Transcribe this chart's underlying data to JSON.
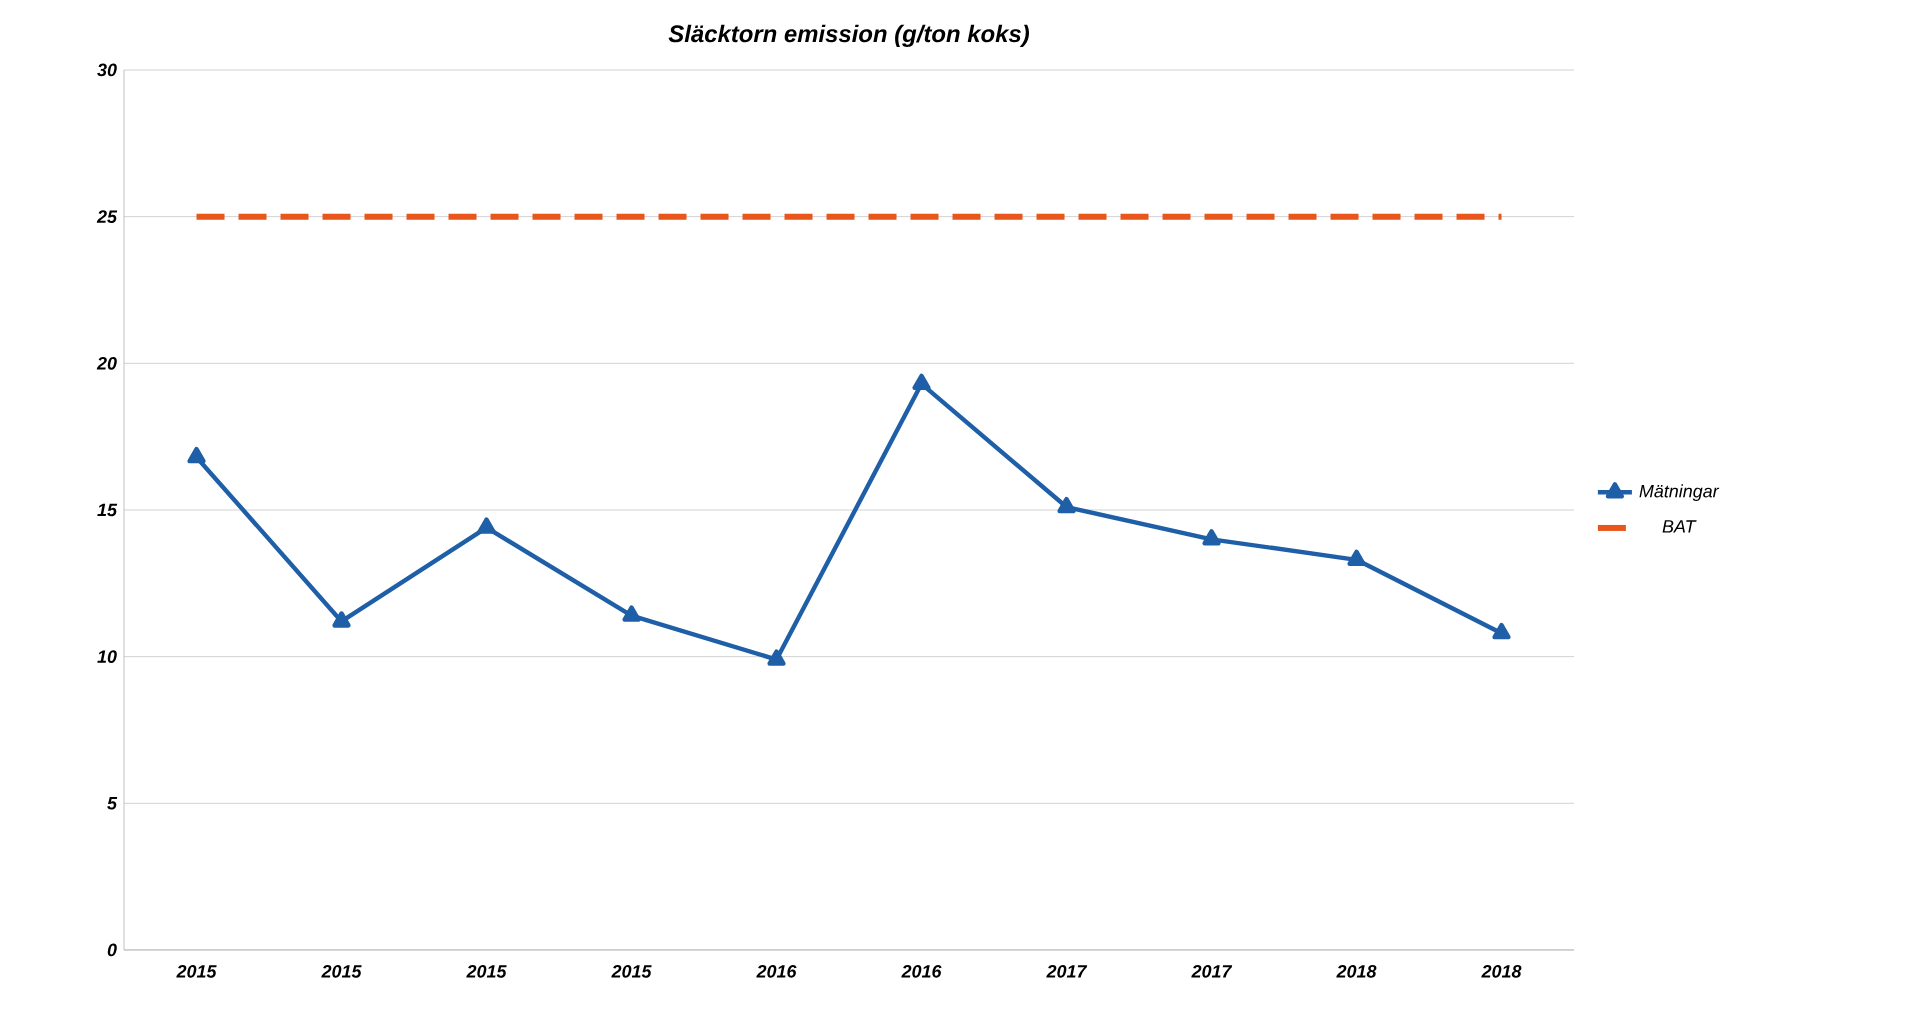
{
  "chart_data": {
    "type": "line",
    "title": "Släcktorn emission (g/ton koks)",
    "categories": [
      "2015",
      "2015",
      "2015",
      "2015",
      "2016",
      "2016",
      "2017",
      "2017",
      "2018",
      "2018"
    ],
    "series": [
      {
        "name": "Mätningar",
        "color": "#1f5fa8",
        "marker": "triangle",
        "line_style": "solid",
        "values": [
          16.8,
          11.2,
          14.4,
          11.4,
          9.9,
          19.3,
          15.1,
          14.0,
          13.3,
          10.8
        ]
      },
      {
        "name": "BAT",
        "color": "#e8561c",
        "marker": "none",
        "line_style": "dashed",
        "values": [
          25,
          25,
          25,
          25,
          25,
          25,
          25,
          25,
          25,
          25
        ]
      }
    ],
    "ylim": [
      0,
      30
    ],
    "yticks": [
      0,
      5,
      10,
      15,
      20,
      25,
      30
    ],
    "grid": "y",
    "legend": "right"
  }
}
